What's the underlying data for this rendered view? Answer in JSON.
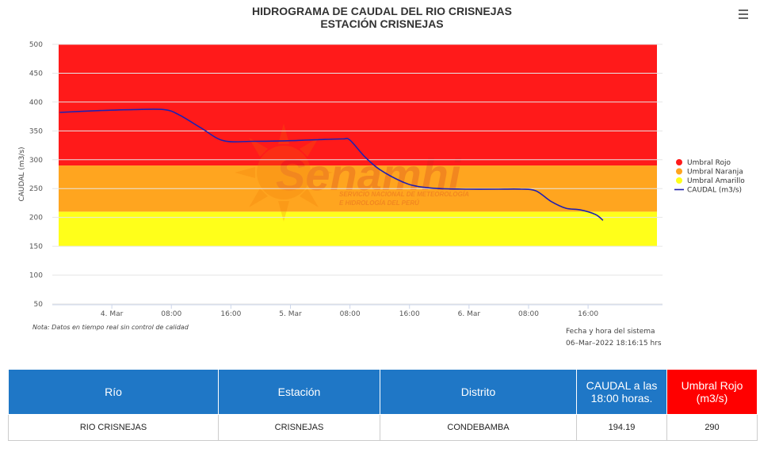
{
  "chart_data": {
    "type": "line",
    "title": "HIDROGRAMA DE CAUDAL DEL RIO CRISNEJAS",
    "subtitle": "ESTACIÓN CRISNEJAS",
    "ylabel": "CAUDAL (m3/s)",
    "xlabel": "",
    "ylim": [
      50,
      500
    ],
    "xlim_hours": [
      -8,
      74
    ],
    "y_ticks": [
      "500",
      "450",
      "400",
      "350",
      "300",
      "250",
      "200",
      "150",
      "100",
      "50"
    ],
    "x_ticks": [
      {
        "label": "4. Mar",
        "h": 0
      },
      {
        "label": "08:00",
        "h": 8
      },
      {
        "label": "16:00",
        "h": 16
      },
      {
        "label": "5. Mar",
        "h": 24
      },
      {
        "label": "08:00",
        "h": 32
      },
      {
        "label": "16:00",
        "h": 40
      },
      {
        "label": "6. Mar",
        "h": 48
      },
      {
        "label": "08:00",
        "h": 56
      },
      {
        "label": "16:00",
        "h": 64
      }
    ],
    "bands": [
      {
        "name": "Umbral Amarillo",
        "from": 150,
        "to": 210,
        "color": "#ffff1a"
      },
      {
        "name": "Umbral Naranja",
        "from": 210,
        "to": 290,
        "color": "#ffa51f"
      },
      {
        "name": "Umbral Rojo",
        "from": 290,
        "to": 500,
        "color": "#ff1a1a"
      }
    ],
    "series": [
      {
        "name": "CAUDAL (m3/s)",
        "color": "#2020b0",
        "x_hours": [
          -7,
          -2,
          3,
          7,
          9,
          12,
          15,
          19,
          24,
          28,
          31,
          32,
          34,
          36,
          39,
          41,
          44,
          48,
          52,
          55,
          57,
          59,
          61,
          63,
          65,
          66
        ],
        "values": [
          382,
          385,
          387,
          387,
          378,
          355,
          333,
          332,
          333,
          335,
          336,
          334,
          305,
          283,
          262,
          254,
          250,
          249,
          249,
          249,
          246,
          228,
          216,
          213,
          205,
          195
        ]
      }
    ],
    "legend": {
      "position": "right",
      "items": [
        {
          "label": "Umbral Rojo",
          "color": "#ff1a1a",
          "kind": "dot"
        },
        {
          "label": "Umbral Naranja",
          "color": "#ffa51f",
          "kind": "dot"
        },
        {
          "label": "Umbral Amarillo",
          "color": "#ffff1a",
          "kind": "dot"
        },
        {
          "label": "CAUDAL (m3/s)",
          "color": "#2020b0",
          "kind": "line"
        }
      ]
    },
    "grid": true
  },
  "watermark": {
    "brand": "Senamhi",
    "line1": "SERVICIO NACIONAL DE METEOROLOGÍA",
    "line2": "E HIDROLOGÍA DEL PERÚ"
  },
  "note": "Nota: Datos en tiempo real sin control de calidad",
  "system_time": {
    "label": "Fecha y hora del sistema",
    "value": "06–Mar–2022 18:16:15 hrs"
  },
  "table": {
    "headers": [
      "Río",
      "Estación",
      "Distrito",
      "CAUDAL a las 18:00 horas.",
      "Umbral Rojo (m3/s)"
    ],
    "row": [
      "RIO CRISNEJAS",
      "CRISNEJAS",
      "CONDEBAMBA",
      "194.19",
      "290"
    ]
  },
  "colors": {
    "header_blue": "#1f77c6",
    "header_red": "#ff0000"
  }
}
